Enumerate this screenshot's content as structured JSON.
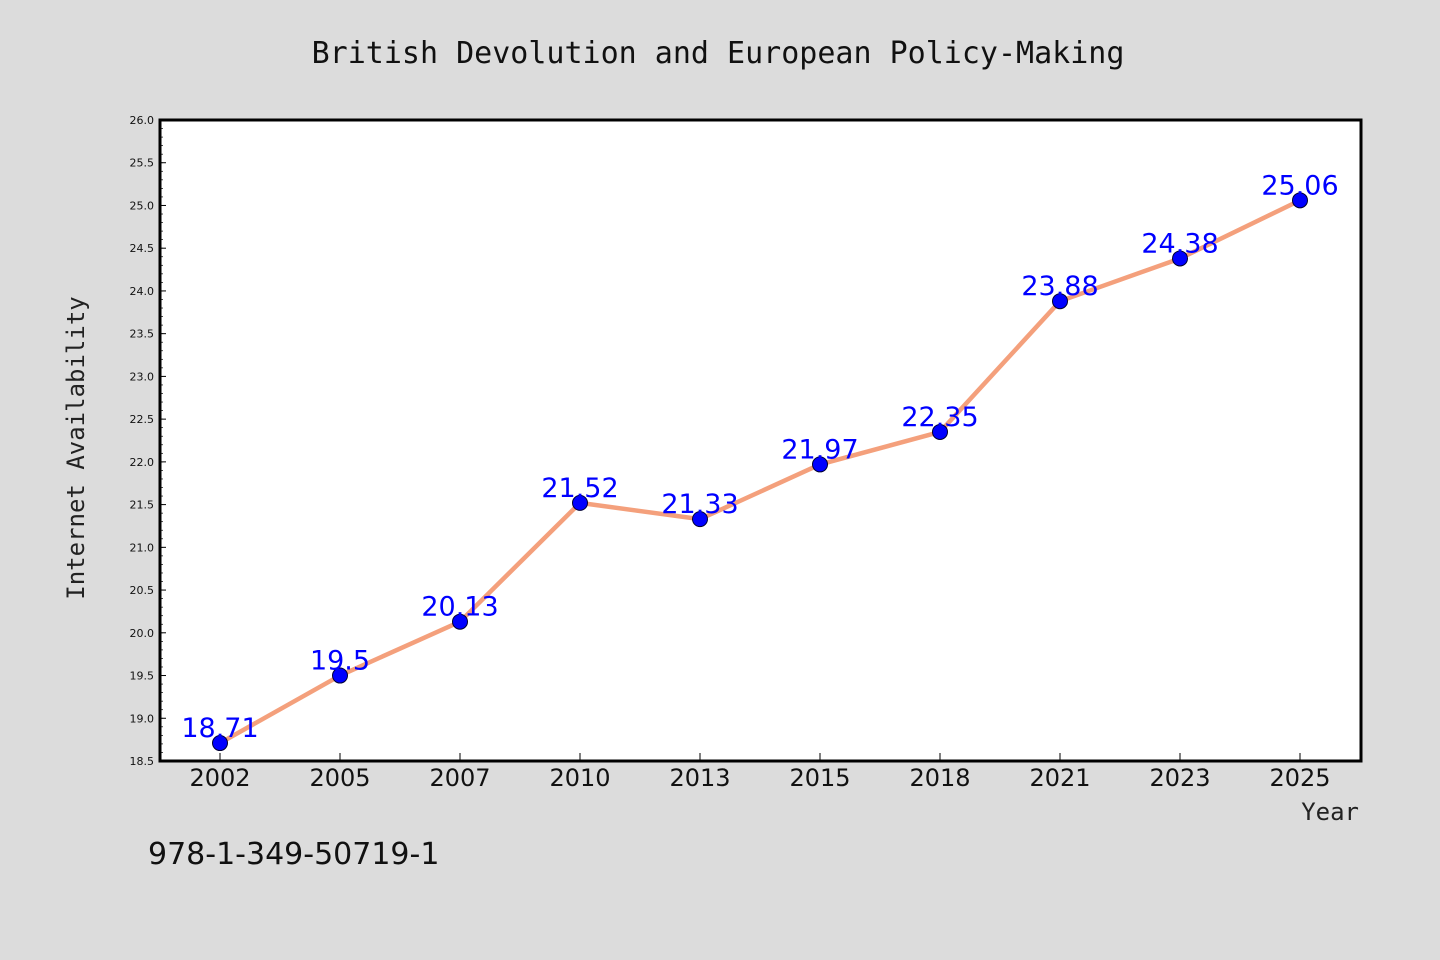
{
  "chart_data": {
    "type": "line",
    "title": "British Devolution and European Policy-Making",
    "xlabel": "Year",
    "ylabel": "Internet Availability",
    "categories": [
      "2002",
      "2005",
      "2007",
      "2010",
      "2013",
      "2015",
      "2018",
      "2021",
      "2023",
      "2025"
    ],
    "series": [
      {
        "values": [
          18.71,
          19.5,
          20.13,
          21.52,
          21.33,
          21.97,
          22.35,
          23.88,
          24.38,
          25.06
        ],
        "data_labels": [
          "18.71",
          "19.5",
          "20.13",
          "21.52",
          "21.33",
          "21.97",
          "22.35",
          "23.88",
          "24.38",
          "25.06"
        ]
      }
    ],
    "yticks": [
      "18.5",
      "19.0",
      "19.5",
      "20.0",
      "20.5",
      "21.0",
      "21.5",
      "22.0",
      "22.5",
      "23.0",
      "23.5",
      "24.0",
      "24.5",
      "25.0",
      "25.5",
      "26.0"
    ],
    "ylim": [
      18.5,
      26.0
    ],
    "grid": false,
    "colors": {
      "line": "#f4a07c",
      "marker": "#0000ff",
      "data_label": "#0000ff",
      "background": "#dcdcdc",
      "plot_background": "#ffffff"
    }
  },
  "footer": {
    "isbn": "978-1-349-50719-1"
  }
}
